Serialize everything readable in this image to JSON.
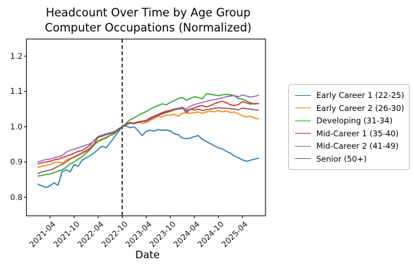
{
  "chart_data": {
    "type": "line",
    "title_line1": "Headcount Over Time by Age Group",
    "title_line2": "Computer Occupations (Normalized)",
    "xlabel": "Date",
    "ylabel": "",
    "grid": false,
    "legend_position": "right outside",
    "ylim": [
      0.75,
      1.24
    ],
    "yticks": [
      0.8,
      0.9,
      1.0,
      1.1,
      1.2
    ],
    "xtick_labels": [
      "2021-04",
      "2021-10",
      "2022-04",
      "2022-10",
      "2023-04",
      "2023-10",
      "2024-04",
      "2024-10",
      "2025-04"
    ],
    "vline": {
      "x": "2022-10",
      "style": "dashed",
      "color": "#000000"
    },
    "spine_color": "#1a1a1a",
    "x": [
      "2021-01",
      "2021-02",
      "2021-03",
      "2021-04",
      "2021-05",
      "2021-06",
      "2021-07",
      "2021-08",
      "2021-09",
      "2021-10",
      "2021-11",
      "2021-12",
      "2022-01",
      "2022-02",
      "2022-03",
      "2022-04",
      "2022-05",
      "2022-06",
      "2022-07",
      "2022-08",
      "2022-09",
      "2022-10",
      "2022-11",
      "2022-12",
      "2023-01",
      "2023-02",
      "2023-03",
      "2023-04",
      "2023-05",
      "2023-06",
      "2023-07",
      "2023-08",
      "2023-09",
      "2023-10",
      "2023-11",
      "2023-12",
      "2024-01",
      "2024-02",
      "2024-03",
      "2024-04",
      "2024-05",
      "2024-06",
      "2024-07",
      "2024-08",
      "2024-09",
      "2024-10",
      "2024-11",
      "2024-12",
      "2025-01",
      "2025-02",
      "2025-03",
      "2025-04",
      "2025-05",
      "2025-06",
      "2025-07",
      "2025-08"
    ],
    "series": [
      {
        "name": "Early Career 1 (22-25)",
        "color": "#1f77b4",
        "values": [
          0.837,
          0.832,
          0.828,
          0.833,
          0.841,
          0.834,
          0.873,
          0.878,
          0.872,
          0.893,
          0.888,
          0.905,
          0.912,
          0.918,
          0.926,
          0.936,
          0.945,
          0.94,
          0.955,
          0.97,
          0.985,
          1.0,
          1.002,
          0.997,
          1.0,
          0.988,
          0.975,
          0.987,
          0.99,
          0.988,
          0.992,
          0.99,
          0.991,
          0.988,
          0.98,
          0.977,
          0.968,
          0.966,
          0.968,
          0.972,
          0.975,
          0.964,
          0.958,
          0.952,
          0.946,
          0.94,
          0.937,
          0.93,
          0.925,
          0.917,
          0.912,
          0.906,
          0.902,
          0.905,
          0.908,
          0.911
        ]
      },
      {
        "name": "Early Career 2 (26-30)",
        "color": "#ff7f0e",
        "values": [
          0.885,
          0.888,
          0.89,
          0.893,
          0.898,
          0.9,
          0.897,
          0.905,
          0.91,
          0.913,
          0.918,
          0.924,
          0.93,
          0.938,
          0.948,
          0.958,
          0.963,
          0.968,
          0.975,
          0.982,
          0.99,
          1.0,
          1.005,
          1.01,
          1.008,
          1.012,
          1.01,
          1.012,
          1.018,
          1.024,
          1.03,
          1.028,
          1.033,
          1.033,
          1.035,
          1.03,
          1.038,
          1.04,
          1.038,
          1.04,
          1.042,
          1.038,
          1.042,
          1.044,
          1.042,
          1.046,
          1.042,
          1.045,
          1.04,
          1.042,
          1.036,
          1.031,
          1.028,
          1.03,
          1.025,
          1.022
        ]
      },
      {
        "name": "Developing (31-34)",
        "color": "#2ca02c",
        "values": [
          0.86,
          0.862,
          0.865,
          0.866,
          0.87,
          0.874,
          0.878,
          0.885,
          0.895,
          0.9,
          0.908,
          0.915,
          0.925,
          0.935,
          0.95,
          0.96,
          0.965,
          0.97,
          0.975,
          0.98,
          0.99,
          1.0,
          1.01,
          1.02,
          1.025,
          1.032,
          1.038,
          1.043,
          1.05,
          1.056,
          1.06,
          1.065,
          1.062,
          1.069,
          1.074,
          1.08,
          1.083,
          1.075,
          1.08,
          1.085,
          1.083,
          1.079,
          1.094,
          1.092,
          1.09,
          1.088,
          1.09,
          1.092,
          1.09,
          1.088,
          1.08,
          1.078,
          1.073,
          1.068,
          1.064,
          1.066
        ]
      },
      {
        "name": "Mid-Career 1 (35-40)",
        "color": "#d62728",
        "values": [
          0.895,
          0.898,
          0.9,
          0.902,
          0.906,
          0.908,
          0.912,
          0.916,
          0.92,
          0.925,
          0.93,
          0.932,
          0.94,
          0.948,
          0.962,
          0.972,
          0.975,
          0.978,
          0.982,
          0.985,
          0.993,
          1.0,
          1.008,
          1.012,
          1.01,
          1.014,
          1.016,
          1.018,
          1.025,
          1.03,
          1.035,
          1.04,
          1.044,
          1.046,
          1.05,
          1.052,
          1.055,
          1.04,
          1.05,
          1.053,
          1.058,
          1.06,
          1.056,
          1.06,
          1.065,
          1.069,
          1.072,
          1.068,
          1.062,
          1.06,
          1.063,
          1.071,
          1.068,
          1.064,
          1.066,
          1.065
        ]
      },
      {
        "name": "Mid-Career 2 (41-49)",
        "color": "#9467bd",
        "values": [
          0.9,
          0.904,
          0.907,
          0.908,
          0.912,
          0.915,
          0.918,
          0.928,
          0.933,
          0.936,
          0.94,
          0.944,
          0.948,
          0.952,
          0.96,
          0.973,
          0.976,
          0.98,
          0.983,
          0.986,
          0.994,
          1.0,
          1.006,
          1.01,
          1.009,
          1.012,
          1.015,
          1.017,
          1.022,
          1.028,
          1.032,
          1.036,
          1.04,
          1.043,
          1.048,
          1.052,
          1.055,
          1.05,
          1.058,
          1.063,
          1.066,
          1.069,
          1.072,
          1.075,
          1.077,
          1.079,
          1.082,
          1.085,
          1.087,
          1.088,
          1.085,
          1.09,
          1.087,
          1.084,
          1.086,
          1.089
        ]
      },
      {
        "name": "Senior (50+)",
        "color": "#8c564b",
        "values": [
          0.868,
          0.872,
          0.875,
          0.877,
          0.882,
          0.888,
          0.893,
          0.9,
          0.908,
          0.915,
          0.92,
          0.926,
          0.932,
          0.94,
          0.952,
          0.97,
          0.973,
          0.977,
          0.98,
          0.984,
          0.992,
          1.0,
          1.007,
          1.011,
          1.009,
          1.013,
          1.015,
          1.016,
          1.022,
          1.028,
          1.033,
          1.037,
          1.041,
          1.045,
          1.048,
          1.05,
          1.052,
          1.045,
          1.05,
          1.047,
          1.05,
          1.046,
          1.048,
          1.05,
          1.052,
          1.054,
          1.053,
          1.052,
          1.051,
          1.05,
          1.048,
          1.053,
          1.051,
          1.05,
          1.048,
          1.047
        ]
      }
    ]
  }
}
